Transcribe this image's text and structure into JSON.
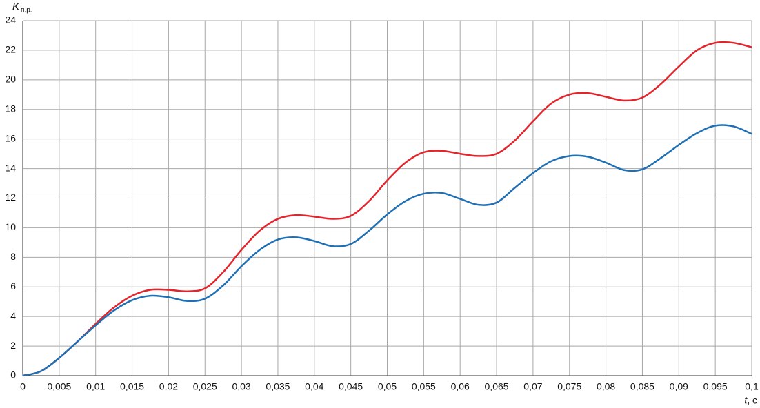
{
  "chart_data": {
    "type": "line",
    "y_label": "K",
    "y_label_sub": "п.р.",
    "x_label": "t",
    "x_label_unit": ", c",
    "x": [
      0,
      0.0025,
      0.005,
      0.0075,
      0.01,
      0.0125,
      0.015,
      0.0175,
      0.02,
      0.0225,
      0.025,
      0.0275,
      0.03,
      0.0325,
      0.035,
      0.0375,
      0.04,
      0.0425,
      0.045,
      0.0475,
      0.05,
      0.0525,
      0.055,
      0.0575,
      0.06,
      0.0625,
      0.065,
      0.0675,
      0.07,
      0.0725,
      0.075,
      0.0775,
      0.08,
      0.0825,
      0.085,
      0.0875,
      0.09,
      0.0925,
      0.095,
      0.0975,
      0.1
    ],
    "series": [
      {
        "color": "#e3242b",
        "values": [
          0,
          0.3,
          1.2,
          2.3,
          3.5,
          4.6,
          5.4,
          5.8,
          5.8,
          5.7,
          5.9,
          7.0,
          8.5,
          9.8,
          10.6,
          10.85,
          10.75,
          10.6,
          10.8,
          11.8,
          13.2,
          14.4,
          15.1,
          15.2,
          15.0,
          14.85,
          15.0,
          15.9,
          17.2,
          18.4,
          19.0,
          19.1,
          18.85,
          18.6,
          18.8,
          19.7,
          20.9,
          22.0,
          22.5,
          22.5,
          22.2
        ]
      },
      {
        "color": "#1f6fb4",
        "values": [
          0,
          0.3,
          1.2,
          2.3,
          3.4,
          4.4,
          5.1,
          5.4,
          5.3,
          5.05,
          5.2,
          6.1,
          7.4,
          8.5,
          9.2,
          9.35,
          9.1,
          8.75,
          8.9,
          9.8,
          10.9,
          11.8,
          12.3,
          12.35,
          11.95,
          11.55,
          11.7,
          12.7,
          13.7,
          14.5,
          14.85,
          14.8,
          14.4,
          13.9,
          13.95,
          14.7,
          15.6,
          16.4,
          16.9,
          16.85,
          16.35
        ]
      }
    ],
    "xlim": [
      0,
      0.1
    ],
    "ylim": [
      0,
      24
    ],
    "xticks": [
      0,
      {
        "value": 0.005,
        "label": "0,005"
      },
      {
        "value": 0.01,
        "label": "0,01"
      },
      {
        "value": 0.015,
        "label": "0,015"
      },
      {
        "value": 0.02,
        "label": "0,02"
      },
      {
        "value": 0.025,
        "label": "0,025"
      },
      {
        "value": 0.03,
        "label": "0,03"
      },
      {
        "value": 0.035,
        "label": "0,035"
      },
      {
        "value": 0.04,
        "label": "0,04"
      },
      {
        "value": 0.045,
        "label": "0,045"
      },
      {
        "value": 0.05,
        "label": "0,05"
      },
      {
        "value": 0.055,
        "label": "0,055"
      },
      {
        "value": 0.06,
        "label": "0,06"
      },
      {
        "value": 0.065,
        "label": "0,065"
      },
      {
        "value": 0.07,
        "label": "0,07"
      },
      {
        "value": 0.075,
        "label": "0,075"
      },
      {
        "value": 0.08,
        "label": "0,08"
      },
      {
        "value": 0.085,
        "label": "0,085"
      },
      {
        "value": 0.09,
        "label": "0,09"
      },
      {
        "value": 0.095,
        "label": "0,095"
      },
      {
        "value": 0.1,
        "label": "0,1"
      }
    ],
    "yticks": [
      0,
      2,
      4,
      6,
      8,
      10,
      12,
      14,
      16,
      18,
      20,
      22,
      24
    ],
    "grid": true
  }
}
